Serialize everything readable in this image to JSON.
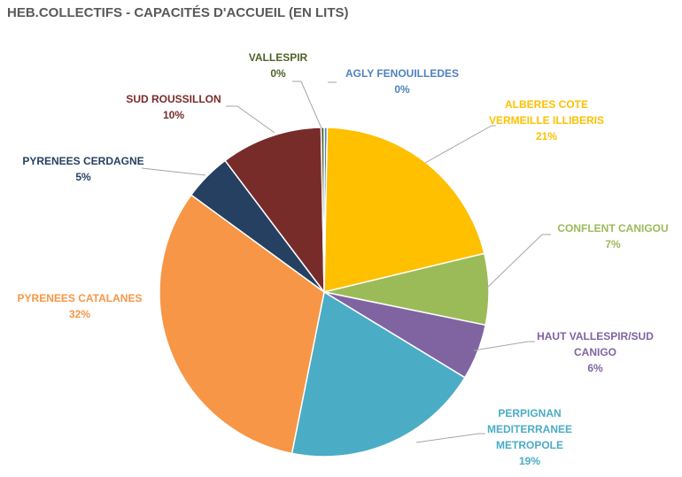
{
  "chart_data": {
    "type": "pie",
    "title": "HEB.COLLECTIFS - CAPACITÉS D'ACCUEIL (EN LITS)",
    "slices": [
      {
        "label": [
          "AGLY FENOUILLEDES"
        ],
        "pct_label": "0%",
        "value": 0.3,
        "color": "#4E81BD"
      },
      {
        "label": [
          "ALBERES COTE",
          "VERMEILLE ILLIBERIS"
        ],
        "pct_label": "21%",
        "value": 21,
        "color": "#FFC000"
      },
      {
        "label": [
          "CONFLENT CANIGOU"
        ],
        "pct_label": "7%",
        "value": 7,
        "color": "#9BBB59"
      },
      {
        "label": [
          "HAUT VALLESPIR/SUD",
          "CANIGO"
        ],
        "pct_label": "6%",
        "value": 5.5,
        "color": "#8064A2"
      },
      {
        "label": [
          "PERPIGNAN",
          "MEDITERRANEE",
          "METROPOLE"
        ],
        "pct_label": "19%",
        "value": 19.5,
        "color": "#4BACC6"
      },
      {
        "label": [
          "PYRENEES CATALANES"
        ],
        "pct_label": "32%",
        "value": 32,
        "color": "#F79646"
      },
      {
        "label": [
          "PYRENEES CERDAGNE"
        ],
        "pct_label": "5%",
        "value": 4.7,
        "color": "#254061"
      },
      {
        "label": [
          "SUD ROUSSILLON"
        ],
        "pct_label": "10%",
        "value": 10,
        "color": "#772C2A"
      },
      {
        "label": [
          "VALLESPIR"
        ],
        "pct_label": "0%",
        "value": 0.3,
        "color": "#4F6228"
      }
    ]
  }
}
